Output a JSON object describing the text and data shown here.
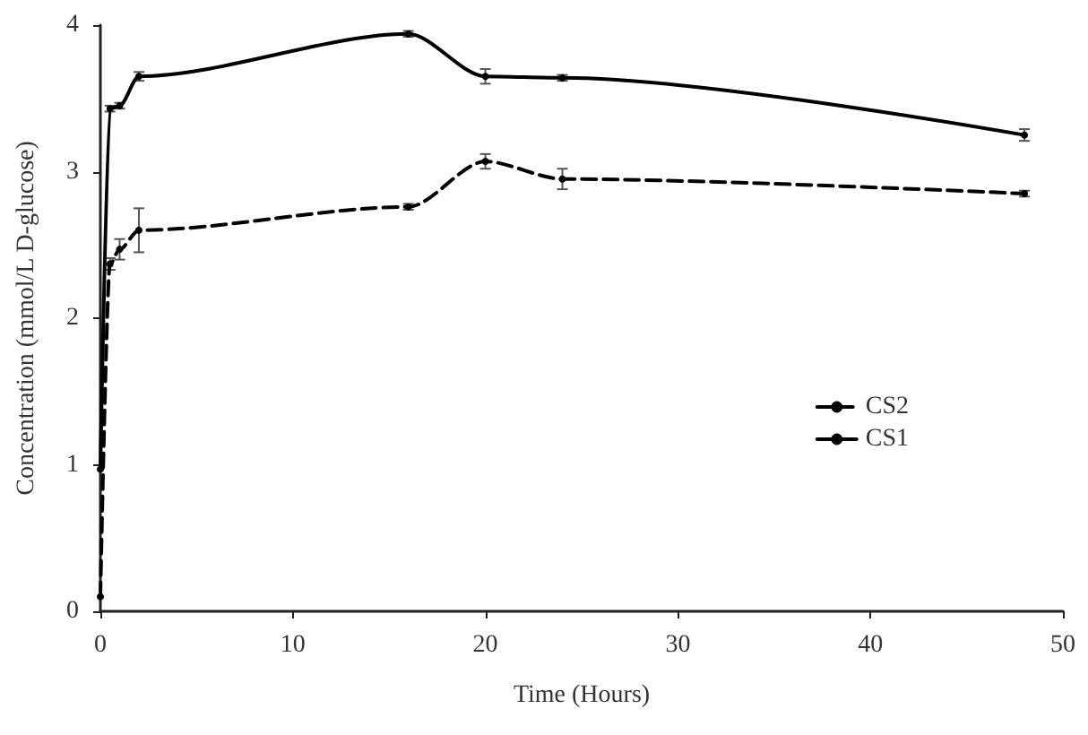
{
  "chart_data": {
    "type": "line",
    "xlabel": "Time (Hours)",
    "ylabel": "Concentration (mmol/L D-glucose)",
    "xlim": [
      0,
      50
    ],
    "xticks": [
      0,
      10,
      20,
      30,
      40,
      50
    ],
    "ylim": [
      0,
      4
    ],
    "yticks": [
      0,
      1,
      2,
      3,
      4
    ],
    "grid": false,
    "legend": "right",
    "marker": "circle",
    "series": [
      {
        "name": "CS2",
        "color": "#000000",
        "line_style": "dashed",
        "x": [
          0,
          0.5,
          1,
          2,
          16,
          20,
          24,
          48
        ],
        "values": [
          0.1,
          2.37,
          2.47,
          2.6,
          2.76,
          3.07,
          2.95,
          2.85
        ],
        "errors": [
          null,
          0.04,
          0.07,
          0.15,
          0.02,
          0.05,
          0.07,
          0.02
        ]
      },
      {
        "name": "CS1",
        "color": "#000000",
        "line_style": "solid",
        "x": [
          0,
          0.5,
          1,
          2,
          16,
          20,
          24,
          48
        ],
        "values": [
          0.97,
          3.43,
          3.45,
          3.65,
          3.94,
          3.65,
          3.64,
          3.25
        ],
        "errors": [
          null,
          0.02,
          0.02,
          0.03,
          0.02,
          0.05,
          0.02,
          0.04
        ]
      }
    ]
  }
}
